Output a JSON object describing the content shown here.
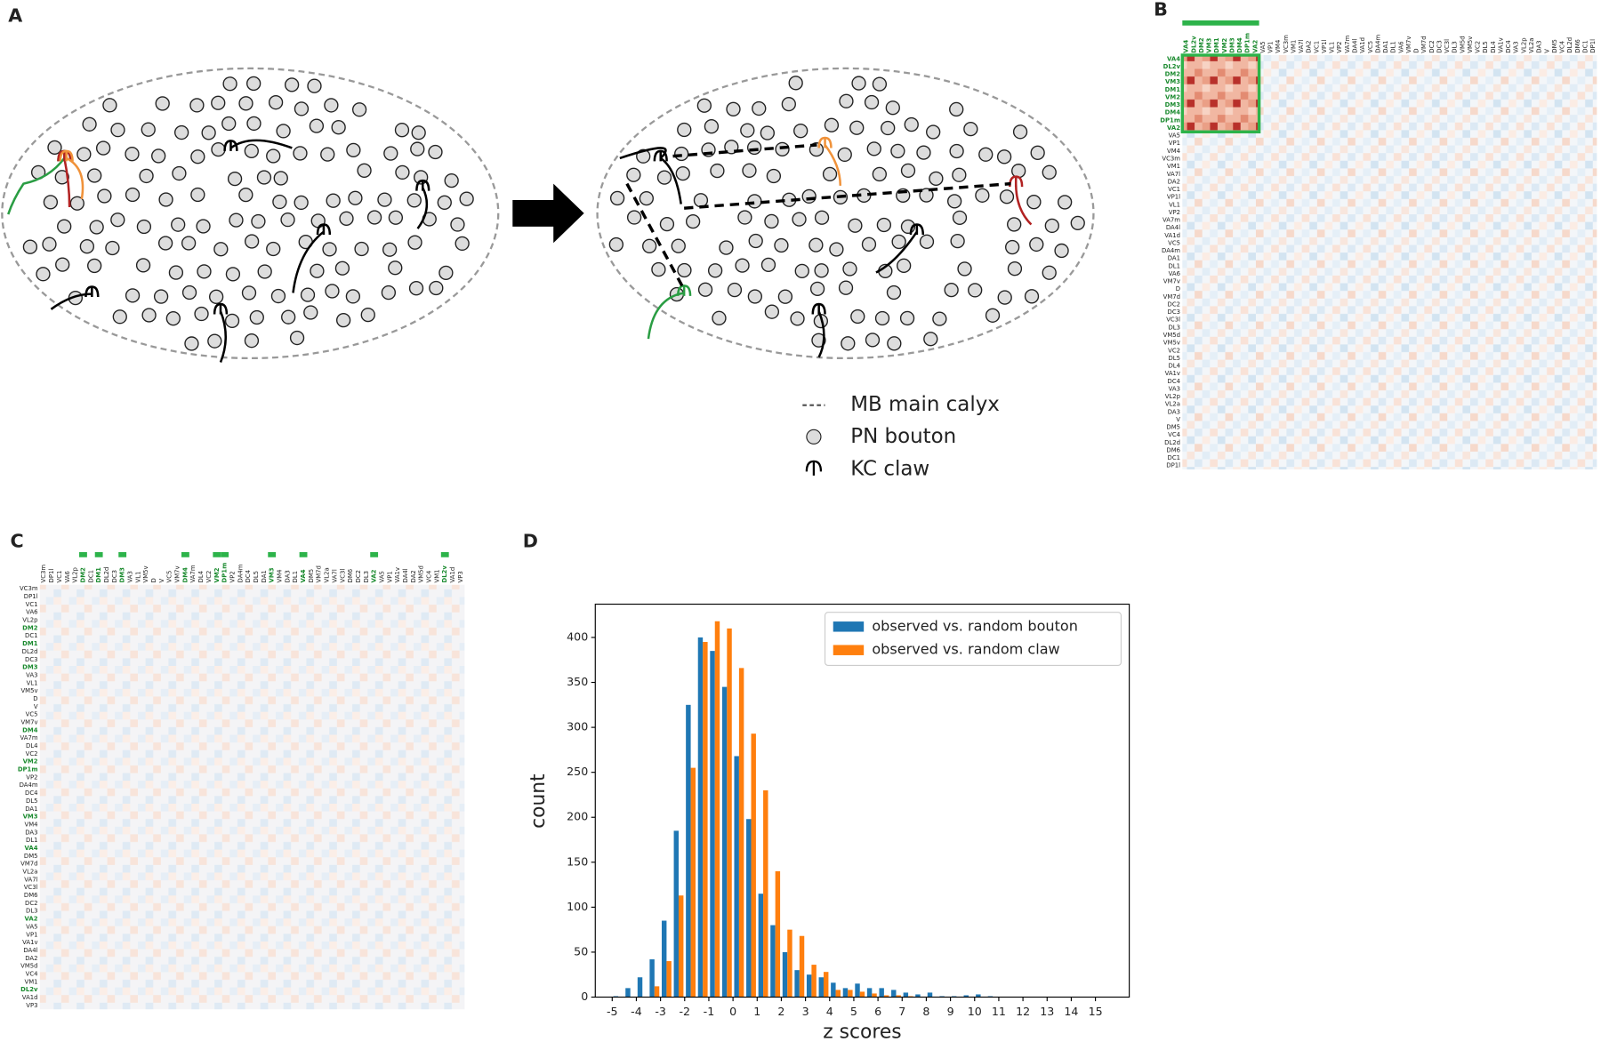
{
  "panel_labels": [
    "A",
    "B",
    "C",
    "D"
  ],
  "panel_a": {
    "legend": [
      "MB main calyx",
      "PN bouton",
      "KC claw"
    ]
  },
  "panel_b": {
    "labels": [
      "VA4",
      "DL2v",
      "DM2",
      "VM3",
      "DM1",
      "VM2",
      "DM3",
      "DM4",
      "DP1m",
      "VA2",
      "VA5",
      "VP1",
      "VM4",
      "VC3m",
      "VM1",
      "VA7l",
      "DA2",
      "VC1",
      "VP1l",
      "VL1",
      "VP2",
      "VA7m",
      "DA4l",
      "VA1d",
      "VC5",
      "DA4m",
      "DA1",
      "DL1",
      "VA6",
      "VM7v",
      "D",
      "VM7d",
      "DC2",
      "DC3",
      "VC3l",
      "DL3",
      "VM5d",
      "VM5v",
      "VC2",
      "DL5",
      "DL4",
      "VA1v",
      "DC4",
      "VA3",
      "VL2p",
      "VL2a",
      "DA3",
      "V",
      "DM5",
      "VC4",
      "DL2d",
      "DM6",
      "DC1",
      "DP1l"
    ],
    "highlight_count": 10,
    "highlight_color": "#2db34a"
  },
  "panel_c": {
    "labels": [
      "VC3m",
      "DP1l",
      "VC1",
      "VA6",
      "VL2p",
      "DM2",
      "DC1",
      "DM1",
      "DL2d",
      "DC3",
      "DM3",
      "VA3",
      "VL1",
      "VM5v",
      "D",
      "V",
      "VC5",
      "VM7v",
      "DM4",
      "VA7m",
      "DL4",
      "VC2",
      "VM2",
      "DP1m",
      "VP2",
      "DA4m",
      "DC4",
      "DL5",
      "DA1",
      "VM3",
      "VM4",
      "DA3",
      "DL1",
      "VA4",
      "DM5",
      "VM7d",
      "VL2a",
      "VA7l",
      "VC3l",
      "DM6",
      "DC2",
      "DL3",
      "VA2",
      "VA5",
      "VP1",
      "VA1v",
      "DA4l",
      "DA2",
      "VM5d",
      "VC4",
      "VM1",
      "DL2v",
      "VA1d",
      "VP3"
    ]
  },
  "chart_data": {
    "type": "histogram",
    "xlabel": "z scores",
    "ylabel": "count",
    "bins": [
      -5,
      -4.5,
      -4,
      -3.5,
      -3,
      -2.5,
      -2,
      -1.5,
      -1,
      -0.5,
      0,
      0.5,
      1,
      1.5,
      2,
      2.5,
      3,
      3.5,
      4,
      4.5,
      5,
      5.5,
      6,
      6.5,
      7,
      7.5,
      8,
      8.5,
      9,
      9.5,
      10,
      10.5,
      11
    ],
    "series": [
      {
        "name": "observed vs. random bouton",
        "color": "#1f77b4",
        "values": [
          1,
          10,
          22,
          42,
          85,
          185,
          325,
          400,
          385,
          345,
          268,
          198,
          115,
          80,
          50,
          30,
          25,
          22,
          16,
          10,
          15,
          10,
          10,
          8,
          5,
          3,
          5,
          1,
          1,
          2,
          3,
          1
        ]
      },
      {
        "name": "observed vs. random claw",
        "color": "#ff7f0e",
        "values": [
          0,
          0,
          0,
          12,
          40,
          113,
          255,
          395,
          418,
          410,
          366,
          293,
          230,
          140,
          75,
          68,
          36,
          28,
          8,
          8,
          6,
          4,
          2,
          2,
          1,
          0,
          0,
          0,
          0,
          0,
          0,
          0
        ]
      }
    ],
    "xlim": [
      -5.7,
      16.4
    ],
    "ylim": [
      0,
      437
    ],
    "xticks": [
      -5,
      -4,
      -3,
      -2,
      -1,
      0,
      1,
      2,
      3,
      4,
      5,
      6,
      7,
      8,
      9,
      10,
      11,
      12,
      13,
      14,
      15
    ],
    "yticks": [
      0,
      50,
      100,
      150,
      200,
      250,
      300,
      350,
      400
    ],
    "legend": "upper right"
  }
}
